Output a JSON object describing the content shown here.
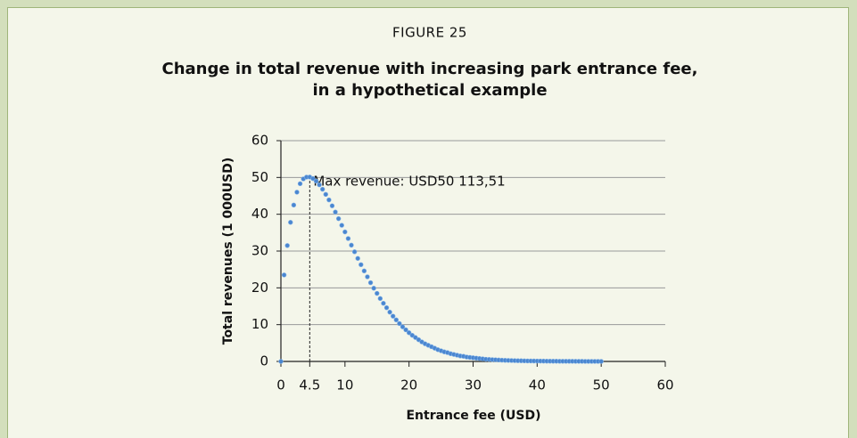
{
  "figure_label": "FIGURE 25",
  "chart_data": {
    "type": "scatter",
    "title": [
      "Change in total revenue with increasing park entrance fee,",
      "in a hypothetical example"
    ],
    "x_label": "Entrance fee (USD)",
    "y_label": "Total revenues (1 000USD)",
    "annotation": {
      "text": "Max revenue: USD50 113,51",
      "x": 4.5,
      "y": 50.11
    },
    "xlim": [
      0,
      60
    ],
    "xticks": [
      0,
      4.5,
      10,
      20,
      30,
      40,
      50,
      60
    ],
    "ylim": [
      0,
      60
    ],
    "yticks": [
      0,
      10,
      20,
      30,
      40,
      50,
      60
    ],
    "grid": true,
    "color": "#4a86d0",
    "x": [
      0,
      0.5,
      1,
      1.5,
      2,
      2.5,
      3,
      3.5,
      4,
      4.5,
      5,
      5.5,
      6,
      6.5,
      7,
      7.5,
      8,
      8.5,
      9,
      9.5,
      10,
      10.5,
      11,
      11.5,
      12,
      12.5,
      13,
      13.5,
      14,
      14.5,
      15,
      15.5,
      16,
      16.5,
      17,
      17.5,
      18,
      18.5,
      19,
      19.5,
      20,
      20.5,
      21,
      21.5,
      22,
      22.5,
      23,
      23.5,
      24,
      24.5,
      25,
      25.5,
      26,
      26.5,
      27,
      27.5,
      28,
      28.5,
      29,
      29.5,
      30,
      30.5,
      31,
      31.5,
      32,
      32.5,
      33,
      33.5,
      34,
      34.5,
      35,
      35.5,
      36,
      36.5,
      37,
      37.5,
      38,
      38.5,
      39,
      39.5,
      40,
      40.5,
      41,
      41.5,
      42,
      42.5,
      43,
      43.5,
      44,
      44.5,
      45,
      45.5,
      46,
      46.5,
      47,
      47.5,
      48,
      48.5,
      49,
      49.5,
      50
    ],
    "values": [
      0,
      23.5,
      31.5,
      37.8,
      42.5,
      46,
      48.3,
      49.6,
      50.1,
      50.11,
      49.7,
      49,
      48,
      46.8,
      45.4,
      43.9,
      42.3,
      40.6,
      38.8,
      37,
      35.2,
      33.4,
      31.6,
      29.8,
      28,
      26.3,
      24.6,
      23,
      21.4,
      19.9,
      18.5,
      17.1,
      15.8,
      14.6,
      13.4,
      12.3,
      11.3,
      10.3,
      9.4,
      8.6,
      7.8,
      7.1,
      6.5,
      5.9,
      5.3,
      4.8,
      4.4,
      4,
      3.6,
      3.2,
      2.9,
      2.6,
      2.4,
      2.1,
      1.9,
      1.7,
      1.5,
      1.4,
      1.2,
      1.1,
      1,
      0.9,
      0.8,
      0.7,
      0.6,
      0.55,
      0.5,
      0.45,
      0.4,
      0.35,
      0.3,
      0.28,
      0.25,
      0.22,
      0.2,
      0.18,
      0.16,
      0.14,
      0.13,
      0.12,
      0.11,
      0.1,
      0.09,
      0.08,
      0.07,
      0.06,
      0.06,
      0.05,
      0.05,
      0.04,
      0.04,
      0.04,
      0.03,
      0.03,
      0.03,
      0.02,
      0.02,
      0.02,
      0.02,
      0.02,
      0.01
    ]
  }
}
